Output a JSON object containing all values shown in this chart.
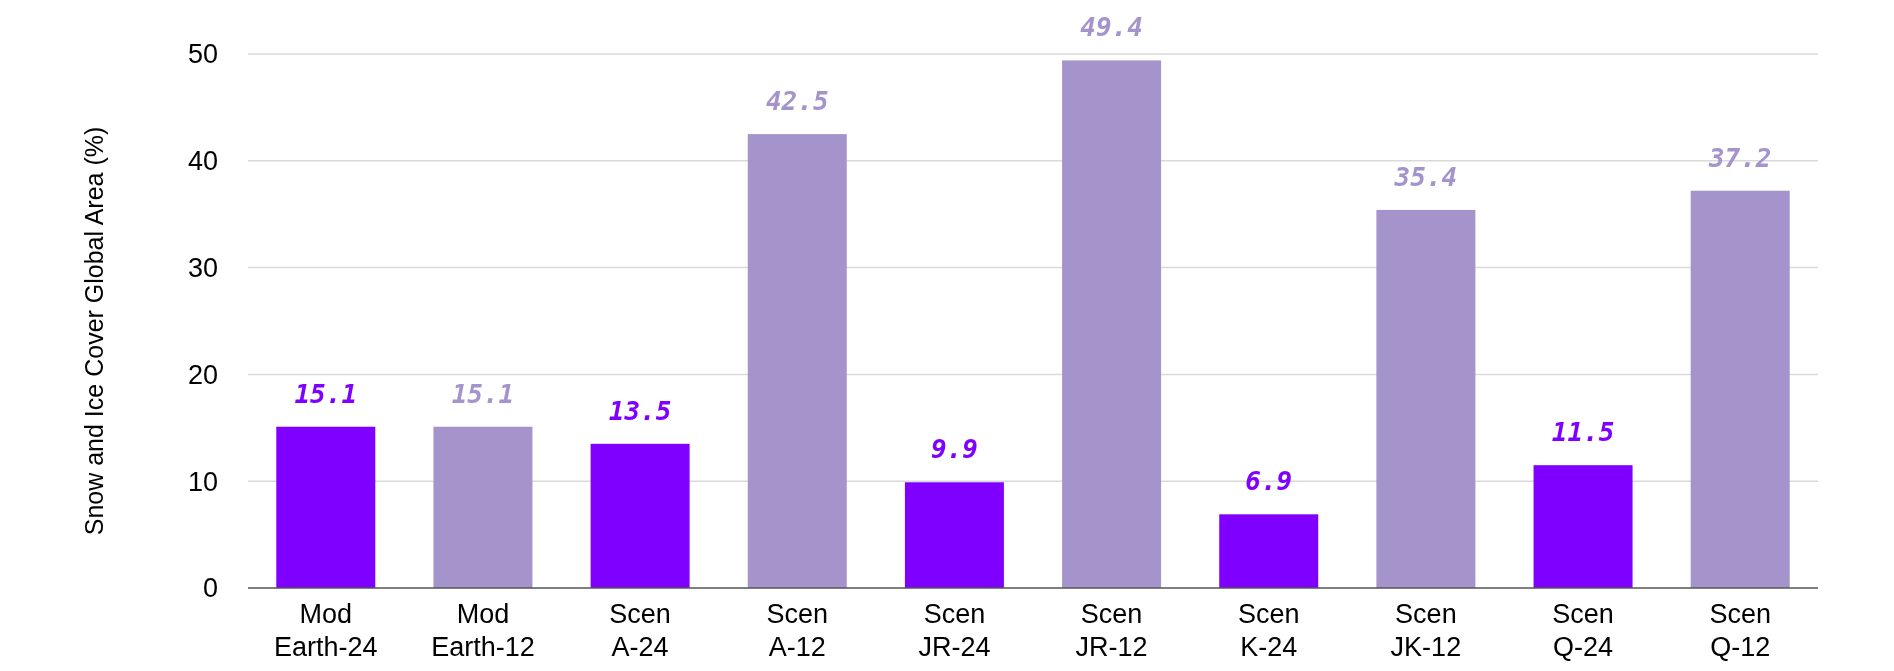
{
  "chart_data": {
    "type": "bar",
    "ylabel": "Snow and Ice Cover Global Area (%)",
    "categories": [
      "Mod\nEarth-24",
      "Mod\nEarth-12",
      "Scen\nA-24",
      "Scen\nA-12",
      "Scen\nJR-24",
      "Scen\nJR-12",
      "Scen\nK-24",
      "Scen\nJK-12",
      "Scen\nQ-24",
      "Scen\nQ-12"
    ],
    "values": [
      15.1,
      15.1,
      13.5,
      42.5,
      9.9,
      49.4,
      6.9,
      35.4,
      11.5,
      37.2
    ],
    "colors": [
      "#8000ff",
      "#a594cc",
      "#8000ff",
      "#a594cc",
      "#8000ff",
      "#a594cc",
      "#8000ff",
      "#a594cc",
      "#8000ff",
      "#a594cc"
    ],
    "ylim": [
      0,
      50
    ],
    "yticks": [
      0,
      10,
      20,
      30,
      40,
      50
    ],
    "grid": "y",
    "data_labels": true
  }
}
